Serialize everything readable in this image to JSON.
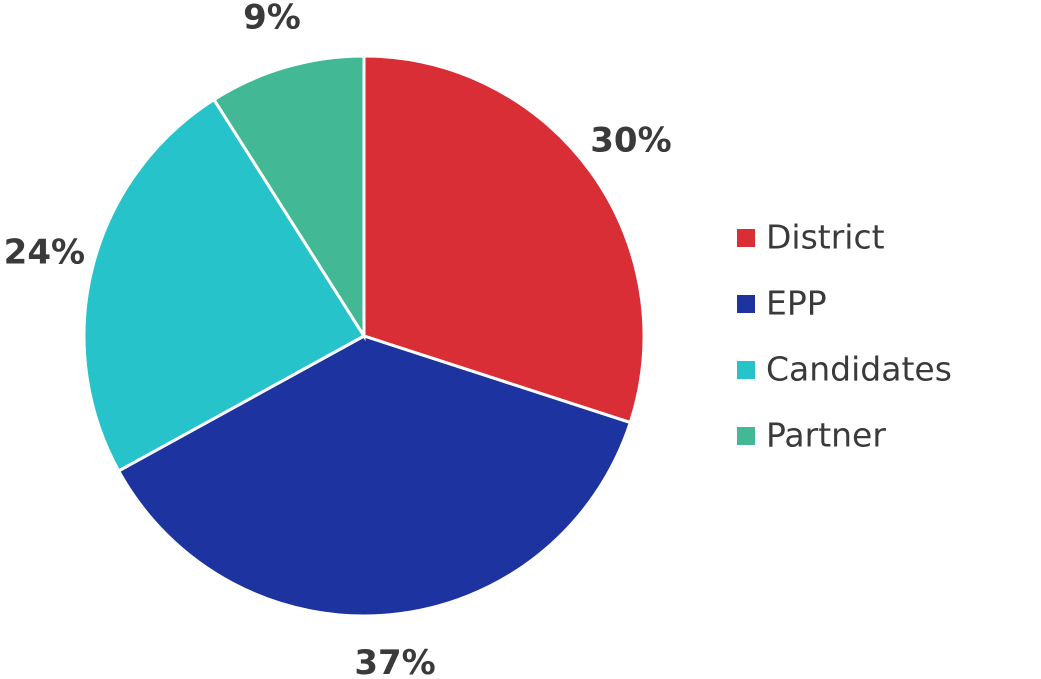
{
  "chart_data": {
    "type": "pie",
    "categories": [
      "District",
      "EPP",
      "Candidates",
      "Partner"
    ],
    "values": [
      30,
      37,
      24,
      9
    ],
    "value_labels": [
      "30%",
      "37%",
      "24%",
      "9%"
    ],
    "colors": [
      "#d92e35",
      "#1c33a0",
      "#26c3cb",
      "#42b994"
    ],
    "legend": "right"
  }
}
